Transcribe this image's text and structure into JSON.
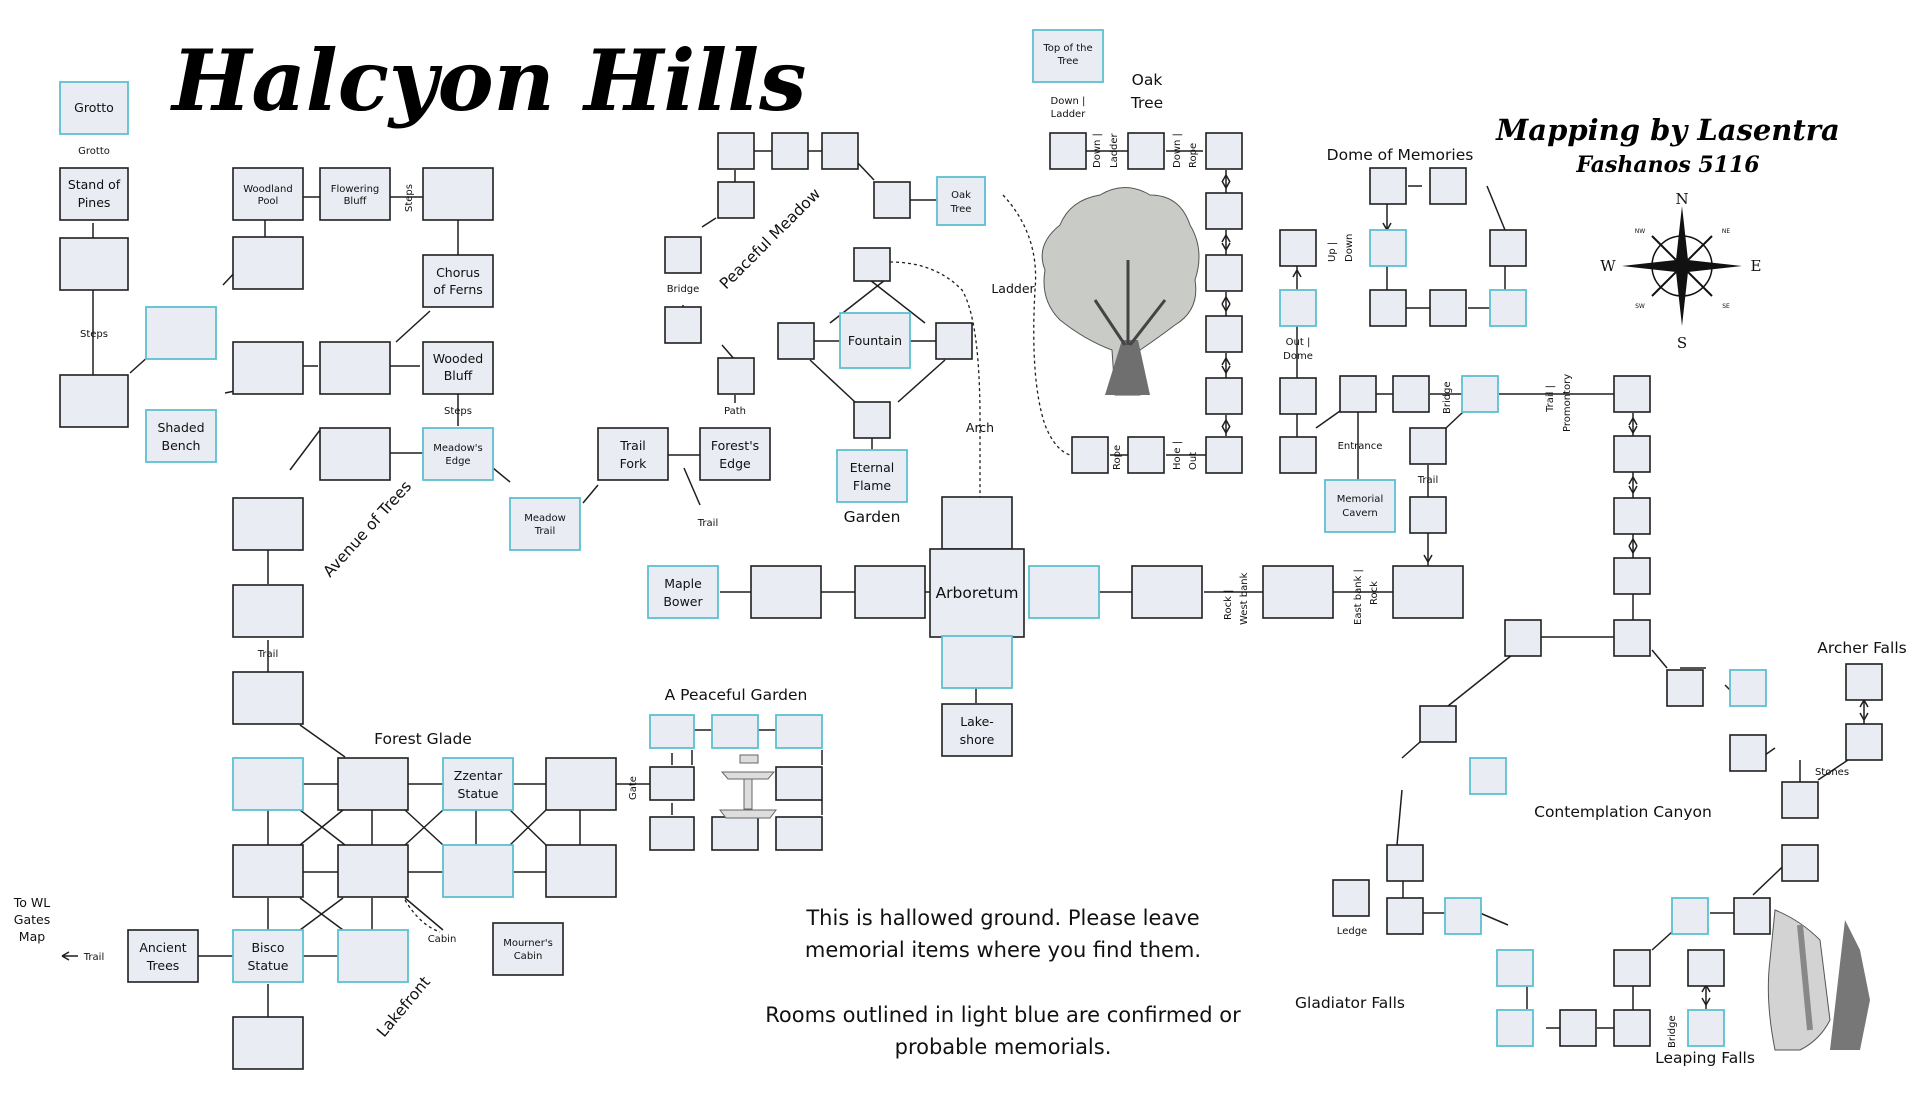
{
  "title": "Halcyon Hills",
  "credit": {
    "line1": "Mapping by Lasentra",
    "line2": "Fashanos 5116"
  },
  "notes": {
    "hallowed_1": "This is hallowed ground.  Please leave",
    "hallowed_2": "memorial items where you find them.",
    "legend_1": "Rooms outlined in light blue are confirmed or",
    "legend_2": "probable memorials."
  },
  "compass": {
    "n": "N",
    "s": "S",
    "e": "E",
    "w": "W",
    "nw": "NW",
    "ne": "NE",
    "sw": "SW",
    "se": "SE"
  },
  "areas": {
    "oak_tree_1": "Oak",
    "oak_tree_2": "Tree",
    "dome_of_memories": "Dome of Memories",
    "peaceful_meadow": "Peaceful Meadow",
    "avenue_of_trees": "Avenue of Trees",
    "garden": "Garden",
    "forest_glade": "Forest Glade",
    "a_peaceful_garden": "A Peaceful Garden",
    "lakefront": "Lakefront",
    "contemplation_canyon": "Contemplation Canyon",
    "archer_falls": "Archer Falls",
    "gladiator_falls": "Gladiator Falls",
    "leaping_falls": "Leaping Falls"
  },
  "rooms": {
    "grotto": "Grotto",
    "stand_1": "Stand of",
    "stand_2": "Pines",
    "woodland_1": "Woodland",
    "woodland_2": "Pool",
    "flowering_1": "Flowering",
    "flowering_2": "Bluff",
    "chorus_1": "Chorus",
    "chorus_2": "of Ferns",
    "wooded_1": "Wooded",
    "wooded_2": "Bluff",
    "shaded_1": "Shaded",
    "shaded_2": "Bench",
    "meadows_1": "Meadow's",
    "meadows_2": "Edge",
    "meadowtrail_1": "Meadow",
    "meadowtrail_2": "Trail",
    "trailfork_1": "Trail",
    "trailfork_2": "Fork",
    "forests_1": "Forest's",
    "forests_2": "Edge",
    "maple_1": "Maple",
    "maple_2": "Bower",
    "arboretum": "Arboretum",
    "lake_1": "Lake-",
    "lake_2": "shore",
    "fountain": "Fountain",
    "eternal_1": "Eternal",
    "eternal_2": "Flame",
    "oaktree_1": "Oak",
    "oaktree_2": "Tree",
    "top_1": "Top of the",
    "top_2": "Tree",
    "zzentar_1": "Zzentar",
    "zzentar_2": "Statue",
    "bisco_1": "Bisco",
    "bisco_2": "Statue",
    "ancient_1": "Ancient",
    "ancient_2": "Trees",
    "mourners_1": "Mourner's",
    "mourners_2": "Cabin",
    "memorial_1": "Memorial",
    "memorial_2": "Cavern",
    "to_wl_1": "To WL",
    "to_wl_2": "Gates",
    "to_wl_3": "Map"
  },
  "exits": {
    "grotto": "Grotto",
    "steps_a": "Steps",
    "steps_b": "Steps",
    "steps_c": "Steps",
    "bridge_a": "Bridge",
    "path": "Path",
    "trail_a": "Trail",
    "trail_b": "Trail",
    "trail_c": "Trail",
    "trail_d": "Trail",
    "ladder": "Ladder",
    "arch": "Arch",
    "down_ladder_1": "Down |",
    "down_ladder_2": "Ladder",
    "down_ladder_v1": "Down |",
    "down_ladder_v2": "Ladder",
    "down_rope_1": "Down |",
    "down_rope_2": "Rope",
    "rope": "Rope",
    "hole_1": "Hole |",
    "hole_2": "Out",
    "up_down_1": "Up |",
    "up_down_2": "Down",
    "out_dome_1": "Out |",
    "out_dome_2": "Dome",
    "entrance": "Entrance",
    "bridge_b": "Bridge",
    "trail_prom_1": "Trail |",
    "trail_prom_2": "Promontory",
    "rock_west_1": "Rock |",
    "rock_west_2": "West bank",
    "east_rock_1": "East bank |",
    "east_rock_2": "Rock",
    "gate": "Gate",
    "cabin": "Cabin",
    "stones": "Stones",
    "ledge": "Ledge",
    "bridge_c": "Bridge"
  }
}
